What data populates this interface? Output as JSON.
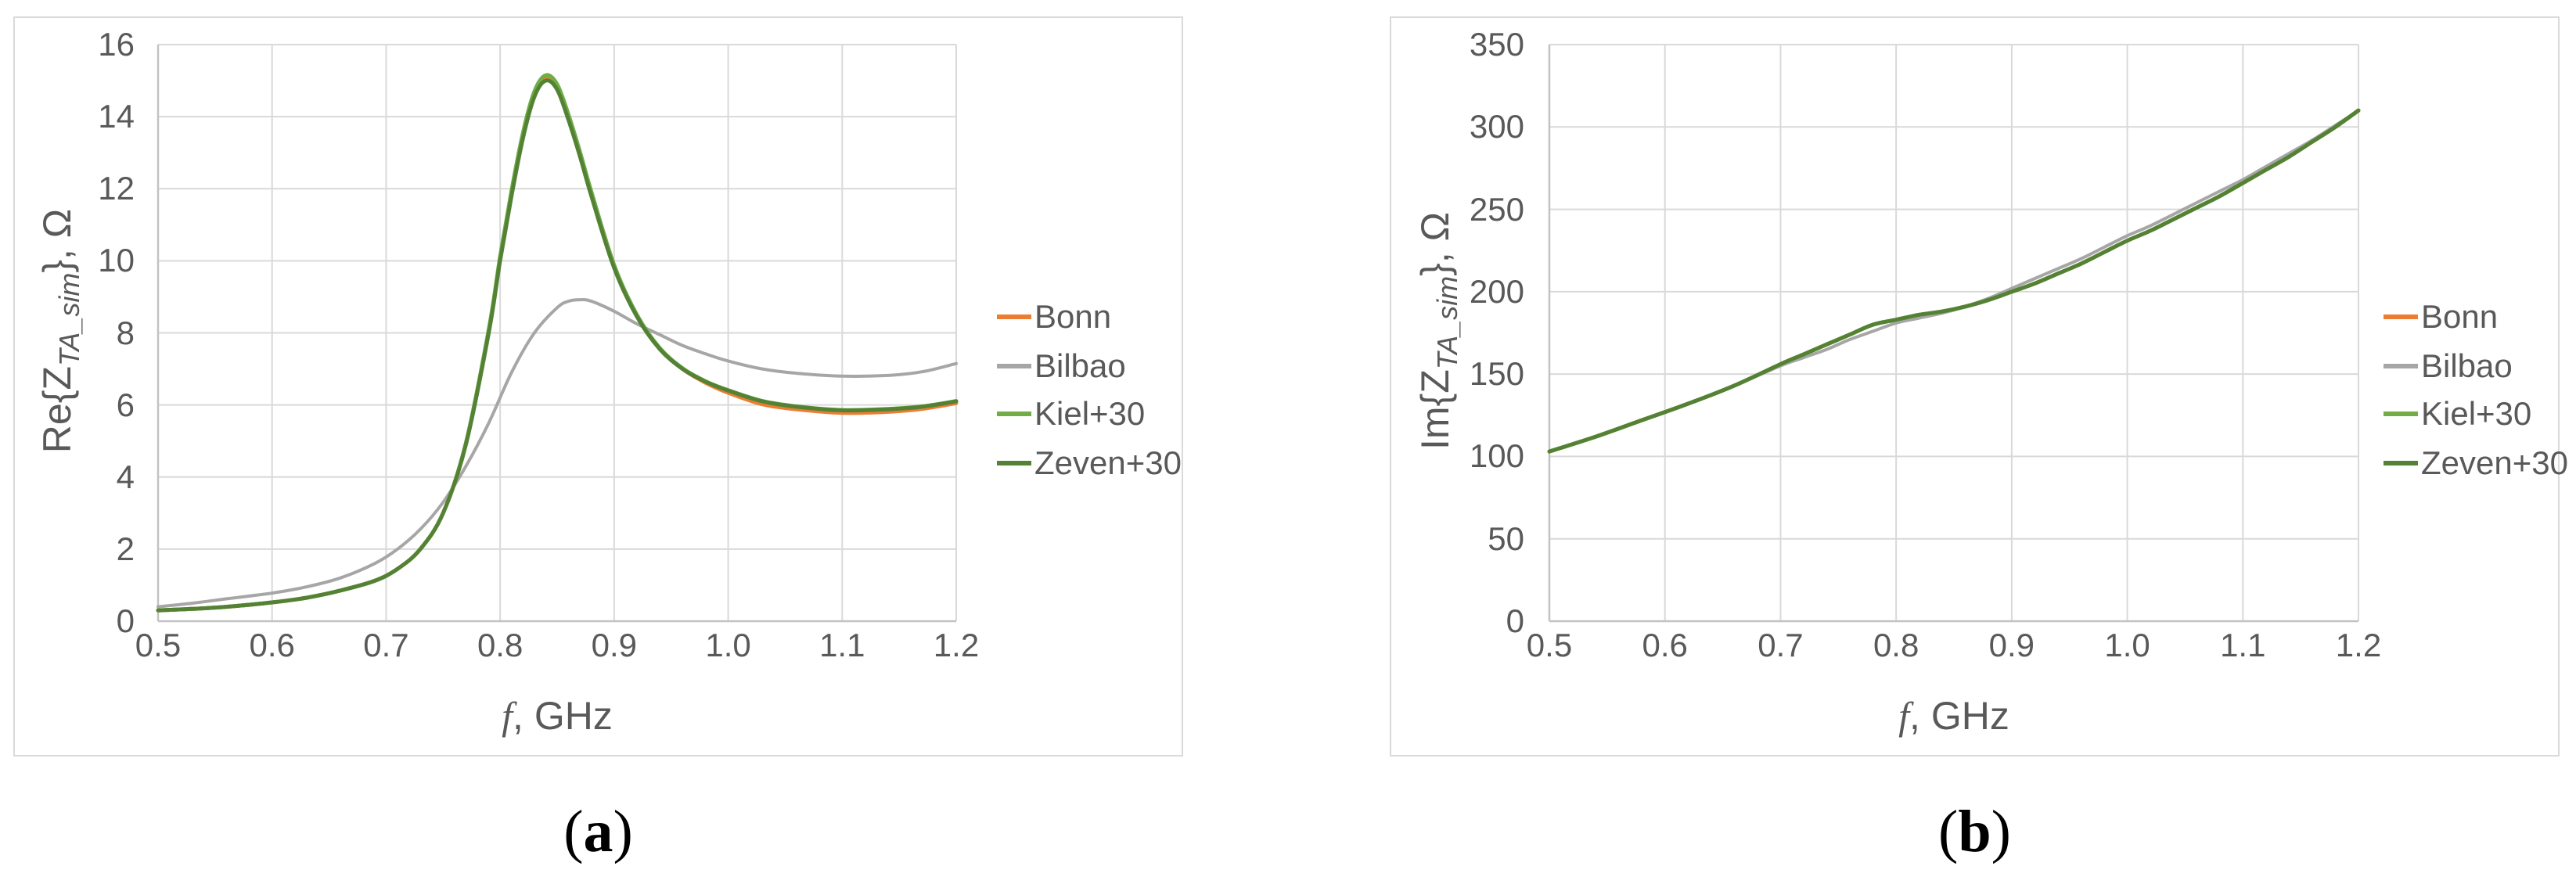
{
  "figure": {
    "panel_border_color": "#dadada",
    "grid_color": "#d9d9d9",
    "axis_color": "#c2c2c2",
    "text_color": "#595959"
  },
  "chart_data": [
    {
      "id": "a",
      "type": "line",
      "caption": {
        "open": "(",
        "letter": "a",
        "close": ")"
      },
      "ylabel": {
        "prefix": "Re{Z",
        "subscript": "TA_sim",
        "suffix": "}, Ω"
      },
      "xlabel": {
        "italic": "f",
        "rest": ", GHz"
      },
      "xlim": [
        0.5,
        1.2
      ],
      "ylim": [
        0,
        16
      ],
      "xticks": [
        "0.5",
        "0.6",
        "0.7",
        "0.8",
        "0.9",
        "1.0",
        "1.1",
        "1.2"
      ],
      "yticks": [
        0,
        2,
        4,
        6,
        8,
        10,
        12,
        14,
        16
      ],
      "grid": true,
      "legend_position": "right",
      "series": [
        {
          "name": "Bonn",
          "color": "#ED7D31",
          "width": 5,
          "points": [
            [
              0.5,
              0.3
            ],
            [
              0.53,
              0.34
            ],
            [
              0.56,
              0.4
            ],
            [
              0.6,
              0.52
            ],
            [
              0.63,
              0.65
            ],
            [
              0.66,
              0.85
            ],
            [
              0.69,
              1.12
            ],
            [
              0.71,
              1.45
            ],
            [
              0.73,
              2.0
            ],
            [
              0.75,
              3.0
            ],
            [
              0.77,
              4.92
            ],
            [
              0.79,
              8.05
            ],
            [
              0.8,
              10.06
            ],
            [
              0.81,
              11.87
            ],
            [
              0.82,
              13.47
            ],
            [
              0.83,
              14.62
            ],
            [
              0.84,
              15.07
            ],
            [
              0.85,
              14.82
            ],
            [
              0.86,
              13.97
            ],
            [
              0.87,
              12.96
            ],
            [
              0.88,
              11.86
            ],
            [
              0.9,
              9.84
            ],
            [
              0.92,
              8.47
            ],
            [
              0.94,
              7.56
            ],
            [
              0.96,
              7.0
            ],
            [
              0.98,
              6.62
            ],
            [
              1.0,
              6.34
            ],
            [
              1.03,
              6.02
            ],
            [
              1.06,
              5.88
            ],
            [
              1.1,
              5.78
            ],
            [
              1.14,
              5.81
            ],
            [
              1.17,
              5.89
            ],
            [
              1.2,
              6.05
            ]
          ]
        },
        {
          "name": "Bilbao",
          "color": "#A6A6A6",
          "width": 4,
          "points": [
            [
              0.5,
              0.4
            ],
            [
              0.53,
              0.5
            ],
            [
              0.56,
              0.62
            ],
            [
              0.6,
              0.78
            ],
            [
              0.63,
              0.95
            ],
            [
              0.66,
              1.2
            ],
            [
              0.69,
              1.6
            ],
            [
              0.71,
              2.0
            ],
            [
              0.73,
              2.55
            ],
            [
              0.75,
              3.3
            ],
            [
              0.77,
              4.3
            ],
            [
              0.79,
              5.5
            ],
            [
              0.81,
              6.9
            ],
            [
              0.83,
              8.0
            ],
            [
              0.85,
              8.7
            ],
            [
              0.86,
              8.88
            ],
            [
              0.87,
              8.92
            ],
            [
              0.88,
              8.88
            ],
            [
              0.9,
              8.6
            ],
            [
              0.92,
              8.25
            ],
            [
              0.94,
              7.95
            ],
            [
              0.96,
              7.65
            ],
            [
              0.98,
              7.42
            ],
            [
              1.0,
              7.22
            ],
            [
              1.03,
              7.0
            ],
            [
              1.06,
              6.88
            ],
            [
              1.1,
              6.8
            ],
            [
              1.14,
              6.82
            ],
            [
              1.17,
              6.92
            ],
            [
              1.2,
              7.15
            ]
          ]
        },
        {
          "name": "Kiel+30",
          "color": "#70AD47",
          "width": 5,
          "points": [
            [
              0.5,
              0.3
            ],
            [
              0.53,
              0.34
            ],
            [
              0.56,
              0.4
            ],
            [
              0.6,
              0.52
            ],
            [
              0.63,
              0.65
            ],
            [
              0.66,
              0.85
            ],
            [
              0.69,
              1.12
            ],
            [
              0.71,
              1.45
            ],
            [
              0.73,
              2.0
            ],
            [
              0.75,
              3.0
            ],
            [
              0.77,
              4.95
            ],
            [
              0.79,
              8.1
            ],
            [
              0.8,
              10.12
            ],
            [
              0.81,
              11.95
            ],
            [
              0.82,
              13.55
            ],
            [
              0.83,
              14.7
            ],
            [
              0.84,
              15.15
            ],
            [
              0.85,
              14.9
            ],
            [
              0.86,
              14.05
            ],
            [
              0.87,
              13.03
            ],
            [
              0.88,
              11.92
            ],
            [
              0.9,
              9.88
            ],
            [
              0.92,
              8.5
            ],
            [
              0.94,
              7.58
            ],
            [
              0.96,
              7.02
            ],
            [
              0.98,
              6.66
            ],
            [
              1.0,
              6.41
            ],
            [
              1.03,
              6.11
            ],
            [
              1.06,
              5.96
            ],
            [
              1.1,
              5.86
            ],
            [
              1.14,
              5.89
            ],
            [
              1.17,
              5.96
            ],
            [
              1.2,
              6.11
            ]
          ]
        },
        {
          "name": "Zeven+30",
          "color": "#548235",
          "width": 5,
          "points": [
            [
              0.5,
              0.3
            ],
            [
              0.53,
              0.34
            ],
            [
              0.56,
              0.4
            ],
            [
              0.6,
              0.52
            ],
            [
              0.63,
              0.65
            ],
            [
              0.66,
              0.85
            ],
            [
              0.69,
              1.12
            ],
            [
              0.71,
              1.45
            ],
            [
              0.73,
              2.0
            ],
            [
              0.75,
              3.0
            ],
            [
              0.77,
              4.9
            ],
            [
              0.79,
              8.0
            ],
            [
              0.8,
              10.0
            ],
            [
              0.81,
              11.8
            ],
            [
              0.82,
              13.4
            ],
            [
              0.83,
              14.55
            ],
            [
              0.84,
              15.0
            ],
            [
              0.85,
              14.75
            ],
            [
              0.86,
              13.9
            ],
            [
              0.87,
              12.9
            ],
            [
              0.88,
              11.8
            ],
            [
              0.9,
              9.8
            ],
            [
              0.92,
              8.45
            ],
            [
              0.94,
              7.55
            ],
            [
              0.96,
              7.0
            ],
            [
              0.98,
              6.65
            ],
            [
              1.0,
              6.4
            ],
            [
              1.03,
              6.1
            ],
            [
              1.06,
              5.95
            ],
            [
              1.1,
              5.85
            ],
            [
              1.14,
              5.88
            ],
            [
              1.17,
              5.95
            ],
            [
              1.2,
              6.1
            ]
          ]
        }
      ]
    },
    {
      "id": "b",
      "type": "line",
      "caption": {
        "open": "(",
        "letter": "b",
        "close": ")"
      },
      "ylabel": {
        "prefix": "Im{Z",
        "subscript": "TA_sim",
        "suffix": "}, Ω"
      },
      "xlabel": {
        "italic": "f",
        "rest": ", GHz"
      },
      "xlim": [
        0.5,
        1.2
      ],
      "ylim": [
        0,
        350
      ],
      "xticks": [
        "0.5",
        "0.6",
        "0.7",
        "0.8",
        "0.9",
        "1.0",
        "1.1",
        "1.2"
      ],
      "yticks": [
        0,
        50,
        100,
        150,
        200,
        250,
        300,
        350
      ],
      "grid": true,
      "legend_position": "right",
      "series": [
        {
          "name": "Bonn",
          "color": "#ED7D31",
          "width": 5,
          "points": [
            [
              0.5,
              103
            ],
            [
              0.54,
              112
            ],
            [
              0.58,
              122
            ],
            [
              0.62,
              132
            ],
            [
              0.66,
              143
            ],
            [
              0.7,
              156
            ],
            [
              0.72,
              162
            ],
            [
              0.74,
              168
            ],
            [
              0.76,
              174
            ],
            [
              0.78,
              180
            ],
            [
              0.8,
              183
            ],
            [
              0.82,
              186
            ],
            [
              0.84,
              188
            ],
            [
              0.86,
              191
            ],
            [
              0.88,
              195
            ],
            [
              0.9,
              200
            ],
            [
              0.92,
              205
            ],
            [
              0.94,
              211
            ],
            [
              0.96,
              217
            ],
            [
              0.98,
              224
            ],
            [
              1.0,
              231
            ],
            [
              1.02,
              237
            ],
            [
              1.04,
              244
            ],
            [
              1.06,
              251
            ],
            [
              1.08,
              258
            ],
            [
              1.1,
              266
            ],
            [
              1.12,
              274
            ],
            [
              1.14,
              282
            ],
            [
              1.16,
              291
            ],
            [
              1.18,
              300
            ],
            [
              1.2,
              310
            ]
          ]
        },
        {
          "name": "Bilbao",
          "color": "#A6A6A6",
          "width": 4,
          "points": [
            [
              0.5,
              103
            ],
            [
              0.54,
              112
            ],
            [
              0.58,
              122
            ],
            [
              0.62,
              132
            ],
            [
              0.66,
              143
            ],
            [
              0.7,
              155
            ],
            [
              0.72,
              160
            ],
            [
              0.74,
              165
            ],
            [
              0.76,
              171
            ],
            [
              0.78,
              176
            ],
            [
              0.8,
              181
            ],
            [
              0.82,
              184
            ],
            [
              0.84,
              187
            ],
            [
              0.86,
              191
            ],
            [
              0.88,
              196
            ],
            [
              0.9,
              202
            ],
            [
              0.92,
              208
            ],
            [
              0.94,
              214
            ],
            [
              0.96,
              220
            ],
            [
              0.98,
              227
            ],
            [
              1.0,
              234
            ],
            [
              1.02,
              240
            ],
            [
              1.04,
              247
            ],
            [
              1.06,
              254
            ],
            [
              1.08,
              261
            ],
            [
              1.1,
              268
            ],
            [
              1.12,
              276
            ],
            [
              1.14,
              284
            ],
            [
              1.16,
              292
            ],
            [
              1.18,
              301
            ],
            [
              1.2,
              310
            ]
          ]
        },
        {
          "name": "Kiel+30",
          "color": "#70AD47",
          "width": 5,
          "points": [
            [
              0.5,
              103
            ],
            [
              0.54,
              112
            ],
            [
              0.58,
              122
            ],
            [
              0.62,
              132
            ],
            [
              0.66,
              143
            ],
            [
              0.7,
              156
            ],
            [
              0.72,
              162
            ],
            [
              0.74,
              168
            ],
            [
              0.76,
              174
            ],
            [
              0.78,
              180
            ],
            [
              0.8,
              183
            ],
            [
              0.82,
              186
            ],
            [
              0.84,
              188
            ],
            [
              0.86,
              191
            ],
            [
              0.88,
              195
            ],
            [
              0.9,
              200
            ],
            [
              0.92,
              205
            ],
            [
              0.94,
              211
            ],
            [
              0.96,
              217
            ],
            [
              0.98,
              224
            ],
            [
              1.0,
              231
            ],
            [
              1.02,
              237
            ],
            [
              1.04,
              244
            ],
            [
              1.06,
              251
            ],
            [
              1.08,
              258
            ],
            [
              1.1,
              266
            ],
            [
              1.12,
              274
            ],
            [
              1.14,
              282
            ],
            [
              1.16,
              291
            ],
            [
              1.18,
              300
            ],
            [
              1.2,
              310
            ]
          ]
        },
        {
          "name": "Zeven+30",
          "color": "#548235",
          "width": 5,
          "points": [
            [
              0.5,
              103
            ],
            [
              0.54,
              112
            ],
            [
              0.58,
              122
            ],
            [
              0.62,
              132
            ],
            [
              0.66,
              143
            ],
            [
              0.7,
              156
            ],
            [
              0.72,
              162
            ],
            [
              0.74,
              168
            ],
            [
              0.76,
              174
            ],
            [
              0.78,
              180
            ],
            [
              0.8,
              183
            ],
            [
              0.82,
              186
            ],
            [
              0.84,
              188
            ],
            [
              0.86,
              191
            ],
            [
              0.88,
              195
            ],
            [
              0.9,
              200
            ],
            [
              0.92,
              205
            ],
            [
              0.94,
              211
            ],
            [
              0.96,
              217
            ],
            [
              0.98,
              224
            ],
            [
              1.0,
              231
            ],
            [
              1.02,
              237
            ],
            [
              1.04,
              244
            ],
            [
              1.06,
              251
            ],
            [
              1.08,
              258
            ],
            [
              1.1,
              266
            ],
            [
              1.12,
              274
            ],
            [
              1.14,
              282
            ],
            [
              1.16,
              291
            ],
            [
              1.18,
              300
            ],
            [
              1.2,
              310
            ]
          ]
        }
      ]
    }
  ]
}
